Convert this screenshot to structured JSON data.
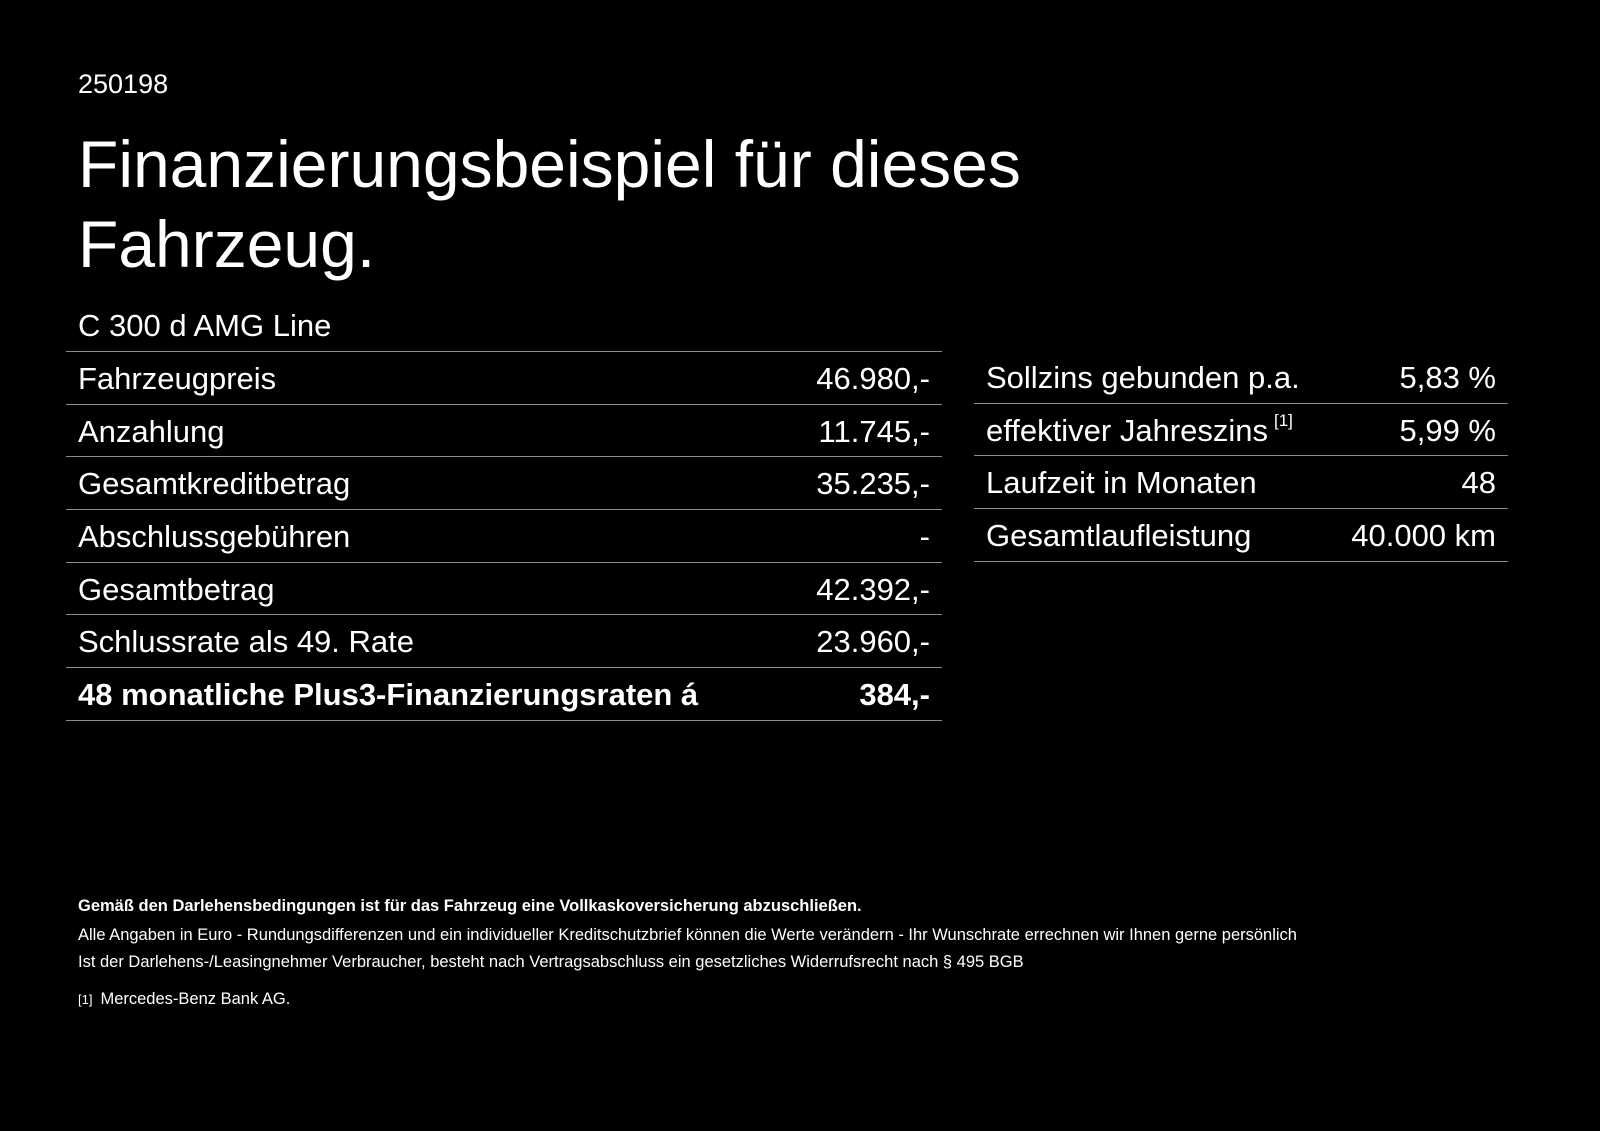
{
  "offer_number": "250198",
  "title": "Finanzierungsbeispiel für dieses Fahrzeug.",
  "model": "C 300 d AMG Line",
  "left_table": [
    {
      "label": "Fahrzeugpreis",
      "value": "46.980,-"
    },
    {
      "label": "Anzahlung",
      "value": "11.745,-"
    },
    {
      "label": "Gesamtkreditbetrag",
      "value": "35.235,-"
    },
    {
      "label": "Abschlussgebühren",
      "value": "-"
    },
    {
      "label": "Gesamtbetrag",
      "value": "42.392,-"
    },
    {
      "label": "Schlussrate als 49. Rate",
      "value": "23.960,-"
    },
    {
      "label": "48 monatliche Plus3-Finanzierungsraten á",
      "value": "384,-"
    }
  ],
  "right_table": [
    {
      "label": "Sollzins gebunden p.a.",
      "value": "5,83 %"
    },
    {
      "label": "effektiver Jahreszins",
      "sup": "[1]",
      "value": "5,99 %"
    },
    {
      "label": "Laufzeit in Monaten",
      "value": "48"
    },
    {
      "label": "Gesamtlaufleistung",
      "value": "40.000 km"
    }
  ],
  "notes": {
    "bold": "Gemäß den Darlehensbedingungen ist für das Fahrzeug eine Vollkaskoversicherung abzuschließen.",
    "line1": "Alle Angaben in Euro - Rundungsdifferenzen und ein individueller Kreditschutzbrief können die Werte verändern - Ihr Wunschrate errechnen wir Ihnen gerne persönlich",
    "line2": "Ist der Darlehens-/Leasingnehmer Verbraucher, besteht nach Vertragsabschluss ein gesetzliches Widerrufsrecht nach § 495 BGB",
    "footnote_marker": "[1]",
    "footnote_text": "Mercedes-Benz Bank AG."
  }
}
